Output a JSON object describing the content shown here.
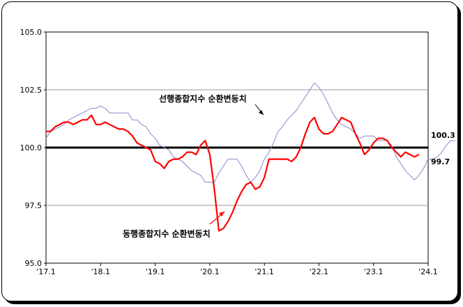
{
  "chart_data": {
    "type": "line",
    "title": "",
    "xlabel": "",
    "ylabel": "",
    "ylim": [
      95.0,
      105.0
    ],
    "yticks": [
      "105.0",
      "102.5",
      "100.0",
      "97.5",
      "95.0"
    ],
    "ytick_values": [
      105.0,
      102.5,
      100.0,
      97.5,
      95.0
    ],
    "xticks": [
      "'17.1",
      "'18.1",
      "'19.1",
      "'20.1",
      "'21.1",
      "'22.1",
      "'23.1",
      "'24.1"
    ],
    "x_start": "2017-01",
    "x_end": "2024-01",
    "reference_line": 100.0,
    "grid": true,
    "series": [
      {
        "name": "선행종합지수 순환변동치",
        "color": "#8888cc",
        "end_label": "100.3",
        "values": [
          100.4,
          100.7,
          100.8,
          100.9,
          101.0,
          101.2,
          101.3,
          101.4,
          101.5,
          101.6,
          101.7,
          101.7,
          101.8,
          101.7,
          101.5,
          101.5,
          101.5,
          101.5,
          101.5,
          101.2,
          101.2,
          101.0,
          100.9,
          100.6,
          100.4,
          100.1,
          100.0,
          99.9,
          99.6,
          99.5,
          99.4,
          99.2,
          99.0,
          98.9,
          98.8,
          98.5,
          98.5,
          98.5,
          98.9,
          99.2,
          99.5,
          99.5,
          99.5,
          99.2,
          98.8,
          98.5,
          98.7,
          99.0,
          99.5,
          99.8,
          100.2,
          100.7,
          100.9,
          101.2,
          101.4,
          101.6,
          101.9,
          102.2,
          102.5,
          102.8,
          102.6,
          102.3,
          101.9,
          101.5,
          101.2,
          101.0,
          100.9,
          100.8,
          100.6,
          100.4,
          100.5,
          100.5,
          100.5,
          100.3,
          100.3,
          100.3,
          100.1,
          99.6,
          99.3,
          99.0,
          98.8,
          98.6,
          98.8,
          99.1,
          99.5,
          99.5,
          99.6,
          99.8,
          100.1,
          100.3,
          100.3
        ]
      },
      {
        "name": "동행종합지수 순환변동치",
        "color": "#ff0000",
        "end_label": "99.7",
        "values": [
          100.7,
          100.7,
          100.9,
          101.0,
          101.1,
          101.1,
          101.0,
          101.1,
          101.2,
          101.2,
          101.4,
          101.0,
          101.0,
          101.1,
          101.0,
          100.9,
          100.8,
          100.8,
          100.7,
          100.5,
          100.2,
          100.1,
          100.0,
          99.9,
          99.4,
          99.3,
          99.1,
          99.4,
          99.5,
          99.5,
          99.6,
          99.8,
          99.8,
          99.7,
          100.1,
          100.3,
          99.7,
          98.2,
          96.4,
          96.5,
          96.8,
          97.2,
          97.7,
          98.1,
          98.4,
          98.5,
          98.2,
          98.3,
          98.7,
          99.5,
          99.5,
          99.5,
          99.5,
          99.5,
          99.4,
          99.6,
          100.0,
          100.6,
          101.1,
          101.3,
          100.8,
          100.6,
          100.6,
          100.7,
          101.0,
          101.3,
          101.2,
          101.1,
          100.6,
          100.2,
          99.7,
          99.9,
          100.2,
          100.4,
          100.4,
          100.3,
          100.0,
          99.8,
          99.6,
          99.8,
          99.7,
          99.6,
          99.7
        ]
      }
    ]
  },
  "annotations": {
    "leading_label": "선행종합지수 순환변동치",
    "coincident_label": "동행종합지수 순환변동치"
  }
}
